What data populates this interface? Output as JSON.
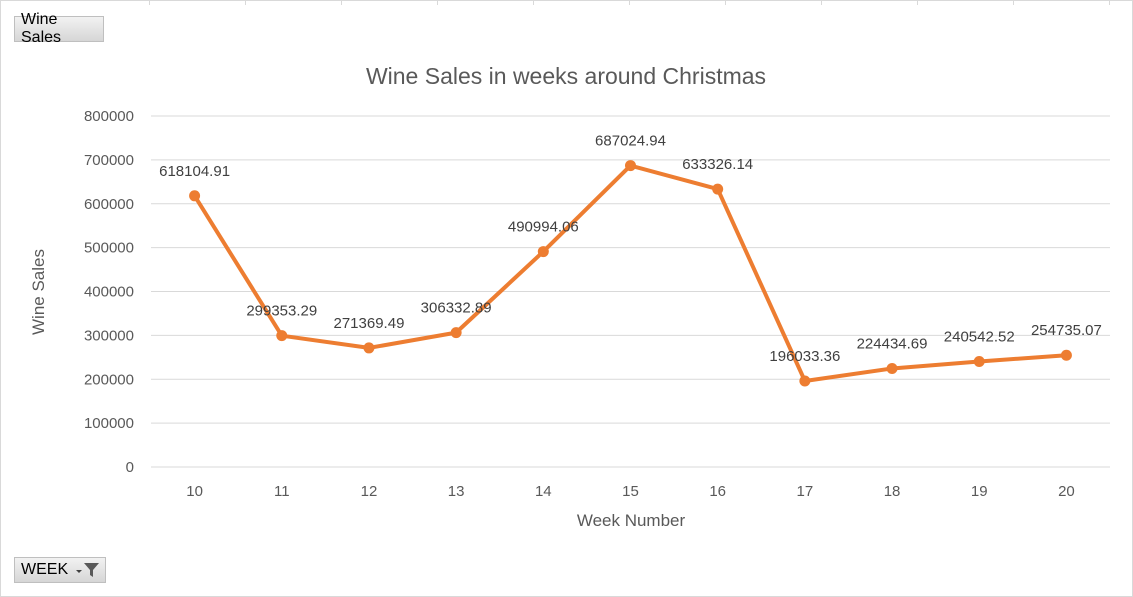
{
  "buttons": {
    "values_field": "Wine Sales",
    "axis_field": "WEEK"
  },
  "colors": {
    "line": "#ED7D31",
    "grid": "#D9D9D9",
    "text": "#595959",
    "label": "#404040"
  },
  "chart_data": {
    "type": "line",
    "title": "Wine Sales in weeks around Christmas",
    "xlabel": "Week Number",
    "ylabel": "Wine Sales",
    "ylim": [
      0,
      800000
    ],
    "yticks": [
      0,
      100000,
      200000,
      300000,
      400000,
      500000,
      600000,
      700000,
      800000
    ],
    "grid": true,
    "categories": [
      "10",
      "11",
      "12",
      "13",
      "14",
      "15",
      "16",
      "17",
      "18",
      "19",
      "20"
    ],
    "series": [
      {
        "values": [
          618104.91,
          299353.29,
          271369.49,
          306332.89,
          490994.06,
          687024.94,
          633326.14,
          196033.36,
          224434.69,
          240542.52,
          254735.07
        ],
        "labels": [
          "618104.91",
          "299353.29",
          "271369.49",
          "306332.89",
          "490994.06",
          "687024.94",
          "633326.14",
          "196033.36",
          "224434.69",
          "240542.52",
          "254735.07"
        ]
      }
    ]
  }
}
